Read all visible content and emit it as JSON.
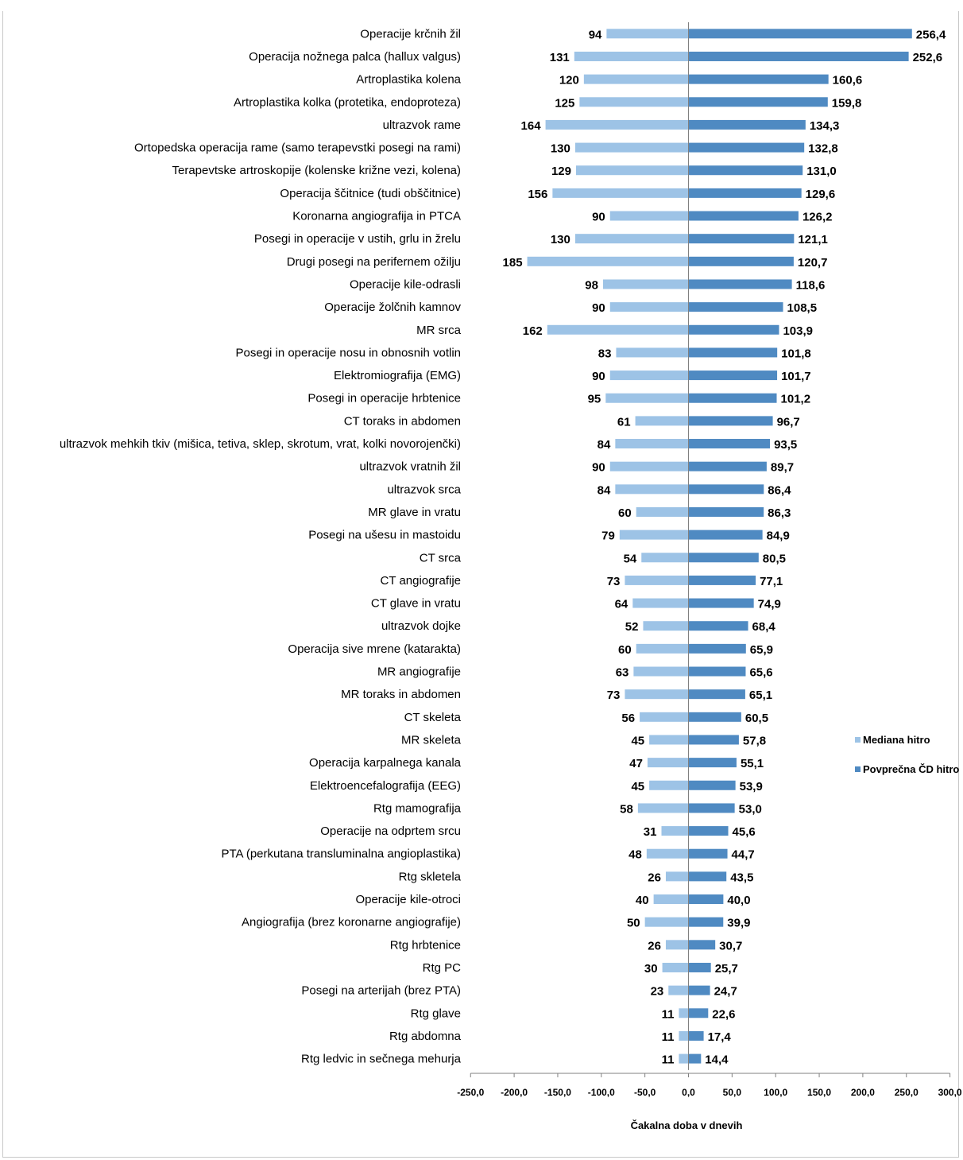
{
  "chart_data": {
    "type": "bar",
    "orientation": "horizontal",
    "title": "",
    "xlabel": "Čakalna doba v dnevih",
    "ylabel": "",
    "xlim": [
      -250,
      300
    ],
    "x_ticks": [
      "-250,0",
      "-200,0",
      "-150,0",
      "-100,0",
      "-50,0",
      "0,0",
      "50,0",
      "100,0",
      "150,0",
      "200,0",
      "250,0",
      "300,0"
    ],
    "grid": false,
    "legend_position": "right",
    "categories": [
      "Operacije krčnih žil",
      "Operacija nožnega palca (hallux valgus)",
      "Artroplastika kolena",
      "Artroplastika kolka (protetika, endoproteza)",
      "ultrazvok rame",
      "Ortopedska operacija rame (samo terapevstki posegi na rami)",
      "Terapevtske artroskopije (kolenske križne vezi, kolena)",
      "Operacija ščitnice (tudi obščitnice)",
      "Koronarna angiografija in PTCA",
      "Posegi in operacije v ustih, grlu in žrelu",
      "Drugi posegi na perifernem ožilju",
      "Operacije kile-odrasli",
      "Operacije žolčnih kamnov",
      "MR srca",
      "Posegi in operacije nosu in obnosnih votlin",
      "Elektromiografija (EMG)",
      "Posegi in operacije hrbtenice",
      "CT toraks in abdomen",
      "ultrazvok mehkih tkiv (mišica, tetiva, sklep, skrotum, vrat, kolki novorojenčki)",
      "ultrazvok vratnih žil",
      "ultrazvok srca",
      "MR glave in vratu",
      "Posegi na ušesu in mastoidu",
      "CT srca",
      "CT angiografije",
      "CT glave in vratu",
      "ultrazvok dojke",
      "Operacija sive mrene (katarakta)",
      "MR angiografije",
      "MR toraks in abdomen",
      "CT skeleta",
      "MR skeleta",
      "Operacija karpalnega kanala",
      "Elektroencefalografija (EEG)",
      "Rtg mamografija",
      "Operacije na odprtem srcu",
      "PTA (perkutana transluminalna angioplastika)",
      "Rtg skletela",
      "Operacije kile-otroci",
      "Angiografija (brez koronarne angiografije)",
      "Rtg hrbtenice",
      "Rtg PC",
      "Posegi na arterijah (brez PTA)",
      "Rtg glave",
      "Rtg abdomna",
      "Rtg ledvic in sečnega mehurja"
    ],
    "series": [
      {
        "name": "Mediana hitro",
        "color": "#9dc3e6",
        "sign": -1,
        "values": [
          94,
          131,
          120,
          125,
          164,
          130,
          129,
          156,
          90,
          130,
          185,
          98,
          90,
          162,
          83,
          90,
          95,
          61,
          84,
          90,
          84,
          60,
          79,
          54,
          73,
          64,
          52,
          60,
          63,
          73,
          56,
          45,
          47,
          45,
          58,
          31,
          48,
          26,
          40,
          50,
          26,
          30,
          23,
          11,
          11,
          11
        ],
        "labels": [
          "94",
          "131",
          "120",
          "125",
          "164",
          "130",
          "129",
          "156",
          "90",
          "130",
          "185",
          "98",
          "90",
          "162",
          "83",
          "90",
          "95",
          "61",
          "84",
          "90",
          "84",
          "60",
          "79",
          "54",
          "73",
          "64",
          "52",
          "60",
          "63",
          "73",
          "56",
          "45",
          "47",
          "45",
          "58",
          "31",
          "48",
          "26",
          "40",
          "50",
          "26",
          "30",
          "23",
          "11",
          "11",
          "11"
        ]
      },
      {
        "name": "Povprečna ČD hitro",
        "color": "#4f8ac2",
        "sign": 1,
        "values": [
          256.4,
          252.6,
          160.6,
          159.8,
          134.3,
          132.8,
          131.0,
          129.6,
          126.2,
          121.1,
          120.7,
          118.6,
          108.5,
          103.9,
          101.8,
          101.7,
          101.2,
          96.7,
          93.5,
          89.7,
          86.4,
          86.3,
          84.9,
          80.5,
          77.1,
          74.9,
          68.4,
          65.9,
          65.6,
          65.1,
          60.5,
          57.8,
          55.1,
          53.9,
          53.0,
          45.6,
          44.7,
          43.5,
          40.0,
          39.9,
          30.7,
          25.7,
          24.7,
          22.6,
          17.4,
          14.4
        ],
        "labels": [
          "256,4",
          "252,6",
          "160,6",
          "159,8",
          "134,3",
          "132,8",
          "131,0",
          "129,6",
          "126,2",
          "121,1",
          "120,7",
          "118,6",
          "108,5",
          "103,9",
          "101,8",
          "101,7",
          "101,2",
          "96,7",
          "93,5",
          "89,7",
          "86,4",
          "86,3",
          "84,9",
          "80,5",
          "77,1",
          "74,9",
          "68,4",
          "65,9",
          "65,6",
          "65,1",
          "60,5",
          "57,8",
          "55,1",
          "53,9",
          "53,0",
          "45,6",
          "44,7",
          "43,5",
          "40,0",
          "39,9",
          "30,7",
          "25,7",
          "24,7",
          "22,6",
          "17,4",
          "14,4"
        ]
      }
    ]
  }
}
